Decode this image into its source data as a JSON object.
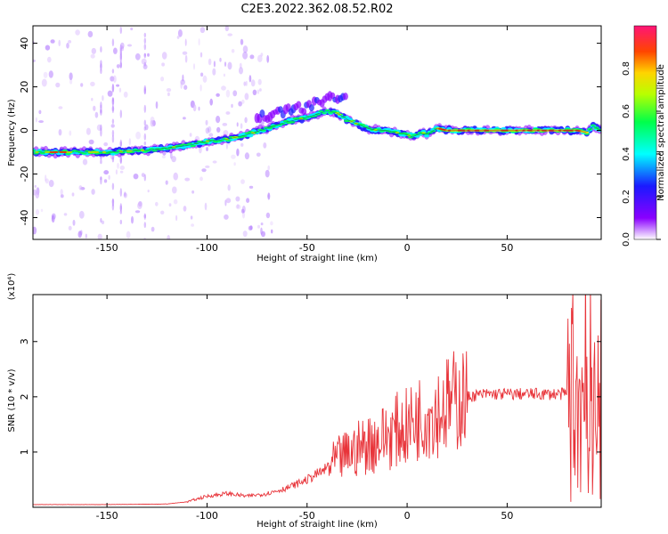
{
  "title": "C2E3.2022.362.08.52.R02",
  "chart_data": [
    {
      "type": "heatmap",
      "xlabel": "Height of straight line (km)",
      "ylabel": "Frequency (Hz)",
      "xlim": [
        -187,
        97
      ],
      "ylim": [
        -50,
        48
      ],
      "xticks": [
        -150,
        -100,
        -50,
        0,
        50
      ],
      "yticks": [
        -40,
        -20,
        0,
        20,
        40
      ],
      "colorbar": {
        "label": "Normalized spectral amplitude",
        "range": [
          0.0,
          1.0
        ],
        "ticks": [
          "0.0",
          "0.2",
          "0.4",
          "0.6",
          "0.8"
        ],
        "ticks_values": [
          0.0,
          0.2,
          0.4,
          0.6,
          0.8
        ],
        "colormap": [
          "#ffffff",
          "#8a00ff",
          "#1a1aff",
          "#00ffff",
          "#00ff4a",
          "#b8ff00",
          "#ffd400",
          "#ff4500",
          "#ff1477"
        ]
      },
      "ridge": {
        "x": [
          -187,
          -170,
          -150,
          -130,
          -110,
          -100,
          -90,
          -80,
          -70,
          -60,
          -50,
          -40,
          -35,
          -30,
          -25,
          -20,
          -15,
          -10,
          -5,
          0,
          3,
          5,
          8,
          10,
          15,
          20,
          30,
          40,
          50,
          60,
          70,
          80,
          85,
          90,
          93,
          97
        ],
        "y": [
          -10,
          -10,
          -10,
          -9,
          -7,
          -5,
          -4,
          -2,
          1,
          4,
          6,
          9,
          8,
          5,
          3,
          1,
          0,
          0,
          -1,
          -2,
          -3,
          -2,
          -1,
          -2,
          1,
          0,
          0,
          0,
          0,
          0,
          0,
          0,
          0,
          -1,
          2,
          0
        ]
      },
      "upper_branch": {
        "x": [
          -75,
          -65,
          -55,
          -45,
          -40,
          -35,
          -30
        ],
        "y": [
          5,
          9,
          10,
          12,
          14,
          16,
          17
        ]
      }
    },
    {
      "type": "line",
      "xlabel": "Height of straight line (km)",
      "ylabel": "SNR (10 * v/v)",
      "scale_label": "(x10⁴)",
      "xlim": [
        -187,
        97
      ],
      "ylim": [
        0,
        3.85
      ],
      "xticks": [
        -150,
        -100,
        -50,
        0,
        50
      ],
      "yticks": [
        1,
        2,
        3
      ],
      "color": "#e8343a",
      "envelope_x": [
        -187,
        -150,
        -120,
        -110,
        -100,
        -90,
        -80,
        -70,
        -60,
        -50,
        -45,
        -40,
        -35,
        -30,
        -25,
        -20,
        -15,
        -10,
        -5,
        0,
        5,
        10,
        15,
        20,
        25,
        30,
        35,
        40,
        50,
        60,
        70,
        80,
        85,
        88,
        90,
        92,
        94,
        97
      ],
      "envelope_y": [
        0.05,
        0.05,
        0.06,
        0.1,
        0.2,
        0.25,
        0.2,
        0.25,
        0.35,
        0.5,
        0.6,
        0.7,
        0.85,
        0.95,
        1.05,
        1.15,
        1.2,
        1.3,
        1.4,
        1.45,
        1.6,
        1.7,
        1.75,
        1.85,
        1.95,
        2.0,
        2.03,
        2.05,
        2.05,
        2.05,
        2.05,
        2.05,
        2.1,
        2.2,
        2.3,
        2.2,
        2.0,
        2.05
      ]
    }
  ]
}
